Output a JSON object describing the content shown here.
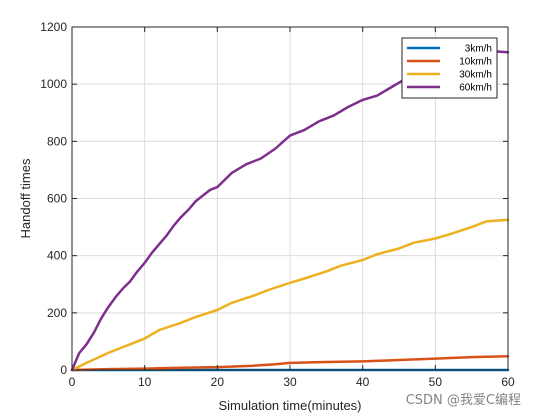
{
  "watermark": "CSDN @我爱C编程",
  "chart_data": {
    "type": "line",
    "title": "",
    "xlabel": "Simulation time(minutes)",
    "ylabel": "Handoff times",
    "xlim": [
      0,
      60
    ],
    "ylim": [
      0,
      1200
    ],
    "xticks": [
      0,
      10,
      20,
      30,
      40,
      50,
      60
    ],
    "yticks": [
      0,
      200,
      400,
      600,
      800,
      1000,
      1200
    ],
    "grid": true,
    "legend_position": "top-right",
    "series": [
      {
        "name": "3km/h",
        "color": "#0072BD",
        "x": [
          0,
          10,
          20,
          30,
          40,
          50,
          60
        ],
        "y": [
          0,
          0,
          0,
          0,
          0,
          0,
          0
        ]
      },
      {
        "name": "10km/h",
        "color": "#D95319",
        "x": [
          0,
          5,
          10,
          15,
          20,
          25,
          28,
          30,
          35,
          40,
          45,
          50,
          55,
          60
        ],
        "y": [
          0,
          3,
          5,
          8,
          10,
          15,
          20,
          25,
          28,
          30,
          35,
          40,
          45,
          48
        ]
      },
      {
        "name": "30km/h",
        "color": "#EDB120",
        "x": [
          0,
          2,
          5,
          7,
          10,
          12,
          15,
          17,
          20,
          22,
          25,
          27,
          30,
          32,
          35,
          37,
          40,
          42,
          45,
          47,
          50,
          52,
          55,
          57,
          60
        ],
        "y": [
          0,
          25,
          60,
          80,
          110,
          140,
          165,
          185,
          210,
          235,
          260,
          280,
          305,
          320,
          345,
          365,
          385,
          405,
          425,
          445,
          460,
          475,
          500,
          520,
          525
        ]
      },
      {
        "name": "60km/h",
        "color": "#7E2F8E",
        "x": [
          0,
          1,
          2,
          3,
          4,
          5,
          6,
          7,
          8,
          9,
          10,
          11,
          12,
          13,
          14,
          15,
          16,
          17,
          18,
          19,
          20,
          22,
          24,
          26,
          28,
          30,
          32,
          34,
          36,
          38,
          40,
          42,
          44,
          46,
          48,
          50,
          52,
          54,
          56,
          58,
          60
        ],
        "y": [
          0,
          60,
          90,
          130,
          180,
          220,
          255,
          285,
          310,
          345,
          375,
          410,
          440,
          470,
          505,
          535,
          560,
          590,
          610,
          630,
          640,
          690,
          720,
          740,
          775,
          820,
          840,
          870,
          890,
          920,
          945,
          960,
          990,
          1020,
          1050,
          1070,
          1080,
          1095,
          1110,
          1115,
          1112
        ]
      }
    ]
  }
}
